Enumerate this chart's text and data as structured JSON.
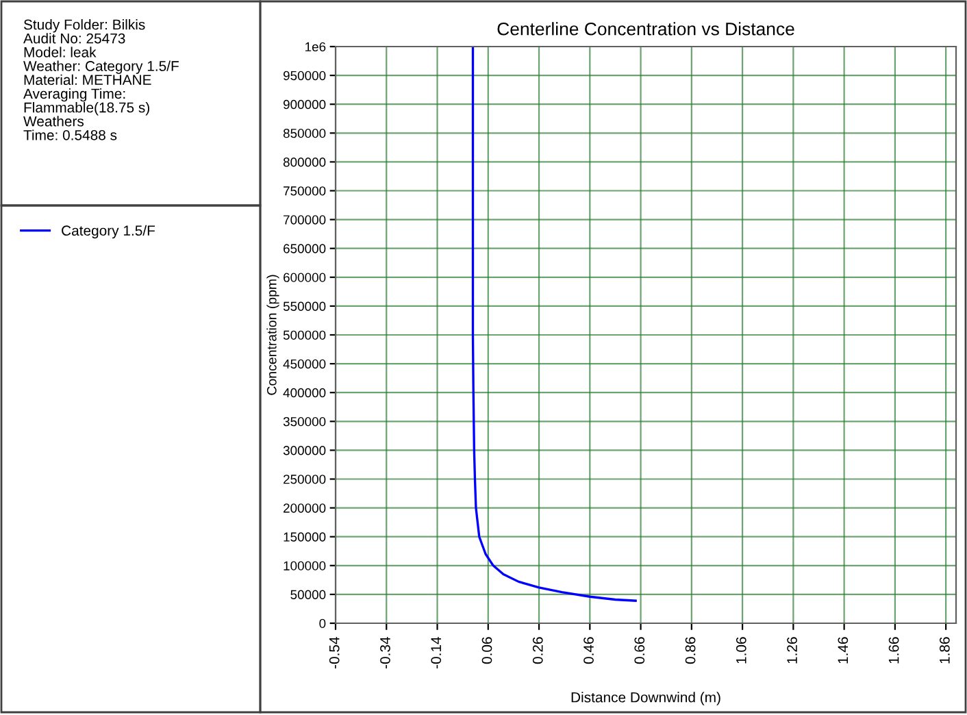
{
  "chart_data": {
    "type": "line",
    "title": "Centerline Concentration vs Distance",
    "xlabel": "Distance Downwind (m)",
    "ylabel": "Concentration (ppm)",
    "annotations": [
      "Study Folder: Bilkis\nAudit No: 25473\nModel: leak\nWeather: Category 1.5/F\nMaterial: METHANE\nAveraging Time:\nFlammable(18.75 s)\nWeathers\nTime: 0.5488 s"
    ],
    "series": [
      {
        "name": "Category 1.5/F",
        "color": "#0000ff",
        "x": [
          0,
          0,
          0.002,
          0.005,
          0.008,
          0.012,
          0.025,
          0.05,
          0.08,
          0.12,
          0.18,
          0.26,
          0.35,
          0.46,
          0.56,
          0.64
        ],
        "values": [
          1000000,
          500000,
          400000,
          300000,
          250000,
          200000,
          150000,
          120000,
          100000,
          85000,
          72000,
          62000,
          54000,
          46000,
          41000,
          39000
        ]
      }
    ],
    "xlim": [
      -0.54,
      1.9
    ],
    "ylim": [
      0,
      1000000
    ],
    "xticks": [
      -0.54,
      -0.34,
      -0.14,
      0.06,
      0.26,
      0.46,
      0.66,
      0.86,
      1.06,
      1.26,
      1.46,
      1.66,
      1.86
    ],
    "yticks": [
      0,
      50000,
      100000,
      150000,
      200000,
      250000,
      300000,
      350000,
      400000,
      450000,
      500000,
      550000,
      600000,
      650000,
      700000,
      750000,
      800000,
      850000,
      900000,
      950000,
      {
        "value": 1000000,
        "label": "1e6"
      }
    ],
    "grid": true,
    "legend": "left",
    "marker": "none",
    "line_style": "solid"
  }
}
